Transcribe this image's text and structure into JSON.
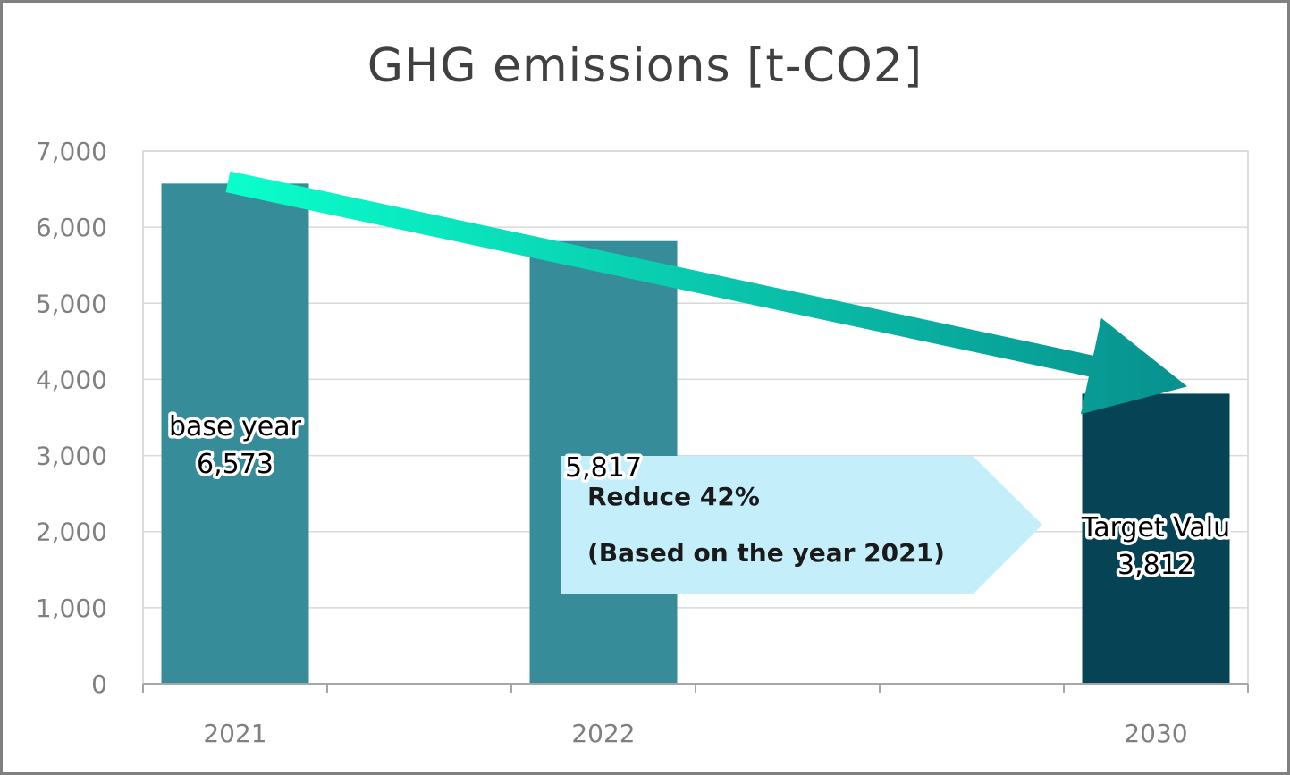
{
  "chart_data": {
    "type": "bar",
    "title": "GHG emissions [t-CO2]",
    "xlabel": "",
    "ylabel": "",
    "categories": [
      "2021",
      "",
      "2022",
      "",
      "",
      "2030"
    ],
    "values": [
      6573,
      null,
      5817,
      null,
      null,
      3812
    ],
    "ylim": [
      0,
      7000
    ],
    "y_ticks": [
      "0",
      "1,000",
      "2,000",
      "3,000",
      "4,000",
      "5,000",
      "6,000",
      "7,000"
    ],
    "y_tick_values": [
      0,
      1000,
      2000,
      3000,
      4000,
      5000,
      6000,
      7000
    ],
    "grid": true,
    "legend": "none",
    "bar_colors": [
      "#368c99",
      null,
      "#368c99",
      null,
      null,
      "#064455"
    ],
    "data_labels": [
      [
        "base year",
        "6,573"
      ],
      null,
      [
        "5,817"
      ],
      null,
      null,
      [
        "Target Valu",
        "3,812"
      ]
    ],
    "annotation": {
      "lines": [
        "Reduce 42%",
        "(Based on the year 2021)"
      ],
      "fill": "#c5eefb"
    },
    "trend_arrow": {
      "from_value": 6573,
      "to_value": 3812,
      "color_start": "#0affcc",
      "color_end": "#08908e"
    }
  }
}
